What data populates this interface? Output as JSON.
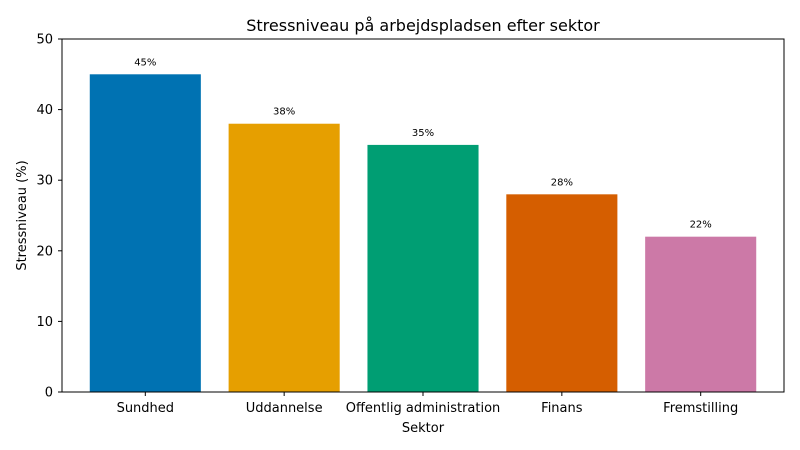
{
  "chart_data": {
    "type": "bar",
    "title": "Stressniveau på arbejdspladsen efter sektor",
    "xlabel": "Sektor",
    "ylabel": "Stressniveau (%)",
    "ylim": [
      0,
      50
    ],
    "yticks": [
      "0",
      "10",
      "20",
      "30",
      "40",
      "50"
    ],
    "ytick_values": [
      0,
      10,
      20,
      30,
      40,
      50
    ],
    "categories": [
      "Sundhed",
      "Uddannelse",
      "Offentlig administration",
      "Finans",
      "Fremstilling"
    ],
    "values": [
      45,
      38,
      35,
      28,
      22
    ],
    "data_labels": [
      "45%",
      "38%",
      "35%",
      "28%",
      "22%"
    ],
    "colors": [
      "#0072b2",
      "#e69f00",
      "#009e73",
      "#d55e00",
      "#cc79a7"
    ],
    "grid": false,
    "legend": "none"
  }
}
